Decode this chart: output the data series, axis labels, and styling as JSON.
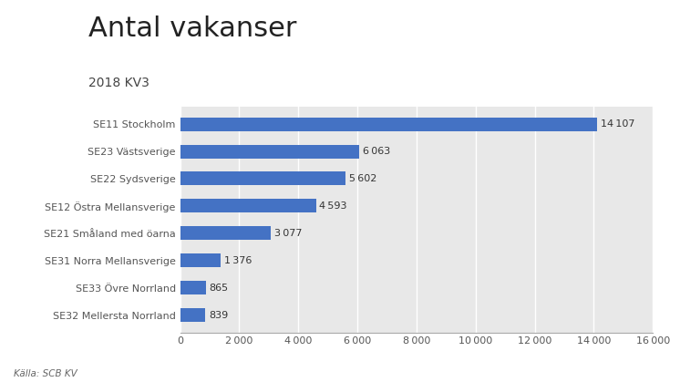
{
  "title": "Antal vakanser",
  "subtitle": "2018 KV3",
  "source": "Källa: SCB KV",
  "categories": [
    "SE32 Mellersta Norrland",
    "SE33 Övre Norrland",
    "SE31 Norra Mellansverige",
    "SE21 Småland med öarna",
    "SE12 Östra Mellansverige",
    "SE22 Sydsverige",
    "SE23 Västsverige",
    "SE11 Stockholm"
  ],
  "values": [
    839,
    865,
    1376,
    3077,
    4593,
    5602,
    6063,
    14107
  ],
  "bar_color": "#4472C4",
  "xlim": [
    0,
    16000
  ],
  "xticks": [
    0,
    2000,
    4000,
    6000,
    8000,
    10000,
    12000,
    14000,
    16000
  ],
  "background_color": "#ffffff",
  "plot_bg_color": "#e8e8e8",
  "grid_color": "#ffffff",
  "title_fontsize": 22,
  "subtitle_fontsize": 10,
  "label_fontsize": 8,
  "value_fontsize": 8,
  "source_fontsize": 7.5,
  "tick_fontsize": 8
}
